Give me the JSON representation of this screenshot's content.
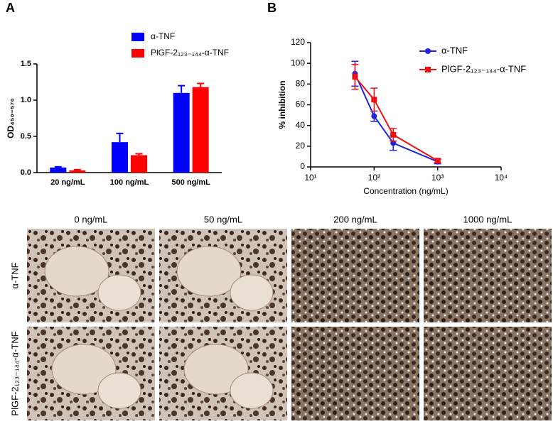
{
  "chart_data": [
    {
      "type": "bar",
      "panel": "A",
      "ylabel": "OD₄₅₀₋₅₇₀",
      "categories": [
        "20 ng/mL",
        "100 ng/mL",
        "500 ng/mL"
      ],
      "series": [
        {
          "name": "α-TNF",
          "color": "#0000ff",
          "values": [
            0.07,
            0.42,
            1.1
          ],
          "errors": [
            0.01,
            0.12,
            0.1
          ]
        },
        {
          "name": "PlGF-2₁₂₃₋₁₄₄-α-TNF",
          "color": "#ff0000",
          "values": [
            0.03,
            0.24,
            1.18
          ],
          "errors": [
            0.01,
            0.02,
            0.05
          ]
        }
      ],
      "ylim": [
        0,
        1.5
      ],
      "yticks": [
        {
          "value": 0,
          "label": "0.0"
        },
        0.5,
        {
          "value": 1,
          "label": "1.0"
        },
        1.5
      ]
    },
    {
      "type": "line",
      "panel": "B",
      "ylabel": "% inhibition",
      "xlabel": "Concentration (ng/mL)",
      "xscale": "log",
      "x": [
        50,
        100,
        200,
        1000
      ],
      "series": [
        {
          "name": "α-TNF",
          "color": "#2222dd",
          "marker": "circle",
          "values": [
            90,
            49,
            23,
            5
          ],
          "errors": [
            12,
            5,
            7,
            2
          ]
        },
        {
          "name": "PlGF-2₁₂₃₋₁₄₄-α-TNF",
          "color": "#ee1111",
          "marker": "square",
          "values": [
            87,
            65,
            31,
            6
          ],
          "errors": [
            12,
            11,
            6,
            2
          ]
        }
      ],
      "xlim": [
        10,
        10000
      ],
      "xticks": [
        {
          "value": 10,
          "label": "10¹"
        },
        {
          "value": 100,
          "label": "10²"
        },
        {
          "value": 1000,
          "label": "10³"
        },
        {
          "value": 10000,
          "label": "10⁴"
        }
      ],
      "ylim": [
        0,
        120
      ],
      "yticks": [
        0,
        20,
        40,
        60,
        80,
        100,
        120
      ]
    }
  ],
  "photo_grid": {
    "columns": [
      "0 ng/mL",
      "50 ng/mL",
      "200 ng/mL",
      "1000 ng/mL"
    ],
    "rows": [
      "α-TNF",
      "PlGF-2₁₂₃₋₁₄₄-α-TNF"
    ]
  }
}
